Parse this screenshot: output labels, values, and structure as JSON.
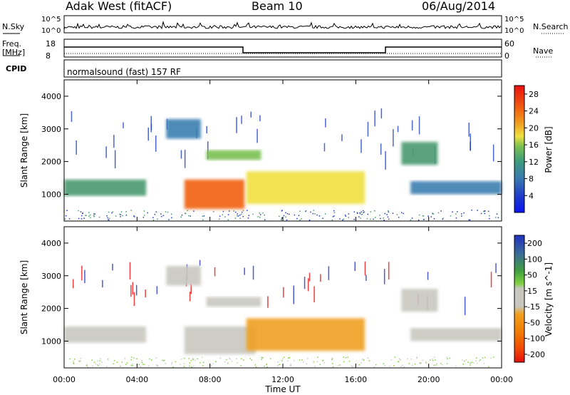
{
  "header": {
    "title": "Adak West (fitACF)",
    "beam": "Beam 10",
    "date": "06/Aug/2014"
  },
  "params": {
    "nsky_label": "N.Sky",
    "nsearch_label": "N.Search",
    "noise_ticks": [
      "10^5",
      "10^0"
    ],
    "freq_label": "Freq.",
    "freq_unit": "[MHz]",
    "freq_ticks": [
      "18",
      "8"
    ],
    "nave_label": "Nave",
    "nave_ticks": [
      "60",
      "0"
    ],
    "cpid_label": "CPID",
    "cpid_text": "normalsound (fast) 157 RF"
  },
  "chart_data": [
    {
      "type": "heatmap",
      "panel": "power",
      "xlabel": "Time UT",
      "ylabel": "Slant Range [km]",
      "x_ticks": [
        "00:00",
        "04:00",
        "08:00",
        "12:00",
        "16:00",
        "20:00",
        "00:00"
      ],
      "y_ticks": [
        "1000",
        "2000",
        "3000",
        "4000"
      ],
      "xlim_hours": [
        0,
        24
      ],
      "ylim_km": [
        180,
        4500
      ],
      "colorbar": {
        "label": "Power [dB]",
        "ticks": [
          "4",
          "8",
          "12",
          "16",
          "20",
          "24",
          "28"
        ],
        "range": [
          0,
          30
        ],
        "colors": [
          "#1010e0",
          "#2050c0",
          "#3a7fb0",
          "#4a9a70",
          "#7ac050",
          "#f0e040",
          "#f0a020",
          "#f06010",
          "#e81010"
        ]
      },
      "regions": [
        {
          "t0": 0.0,
          "t1": 4.5,
          "r0": 950,
          "r1": 1450,
          "value": 10
        },
        {
          "t0": 5.6,
          "t1": 7.5,
          "r0": 2700,
          "r1": 3300,
          "value": 6
        },
        {
          "t0": 6.6,
          "t1": 9.9,
          "r0": 550,
          "r1": 1450,
          "value": 27
        },
        {
          "t0": 7.8,
          "t1": 10.8,
          "r0": 2050,
          "r1": 2350,
          "value": 14
        },
        {
          "t0": 10.0,
          "t1": 16.5,
          "r0": 700,
          "r1": 1700,
          "value": 18
        },
        {
          "t0": 18.5,
          "t1": 20.5,
          "r0": 1900,
          "r1": 2600,
          "value": 10
        },
        {
          "t0": 19.0,
          "t1": 24.0,
          "r0": 1000,
          "r1": 1400,
          "value": 8
        }
      ]
    },
    {
      "type": "heatmap",
      "panel": "velocity",
      "xlabel": "Time UT",
      "ylabel": "Slant Range [km]",
      "x_ticks": [
        "00:00",
        "04:00",
        "08:00",
        "12:00",
        "16:00",
        "20:00",
        "00:00"
      ],
      "y_ticks": [
        "1000",
        "2000",
        "3000",
        "4000"
      ],
      "xlim_hours": [
        0,
        24
      ],
      "ylim_km": [
        180,
        4500
      ],
      "colorbar": {
        "label": "Velocity [m s^-1]",
        "ticks": [
          "200",
          "100",
          "50",
          "15",
          "-15",
          "-50",
          "-100",
          "-200"
        ],
        "colors": [
          "#2030c0",
          "#3a7090",
          "#40a040",
          "#80d040",
          "#c8c8c0",
          "#f0a020",
          "#f08000",
          "#f05000",
          "#e81010"
        ]
      },
      "regions": [
        {
          "t0": 0.0,
          "t1": 4.5,
          "r0": 950,
          "r1": 1450,
          "value": 0
        },
        {
          "t0": 5.6,
          "t1": 7.5,
          "r0": 2700,
          "r1": 3300,
          "value": 0
        },
        {
          "t0": 6.6,
          "t1": 10.5,
          "r0": 600,
          "r1": 1450,
          "value": 0
        },
        {
          "t0": 7.8,
          "t1": 10.8,
          "r0": 2050,
          "r1": 2350,
          "value": 0
        },
        {
          "t0": 10.0,
          "t1": 16.5,
          "r0": 700,
          "r1": 1700,
          "value": -50
        },
        {
          "t0": 18.5,
          "t1": 20.5,
          "r0": 1900,
          "r1": 2600,
          "value": 0
        },
        {
          "t0": 19.0,
          "t1": 24.0,
          "r0": 1000,
          "r1": 1400,
          "value": 0
        }
      ]
    }
  ]
}
